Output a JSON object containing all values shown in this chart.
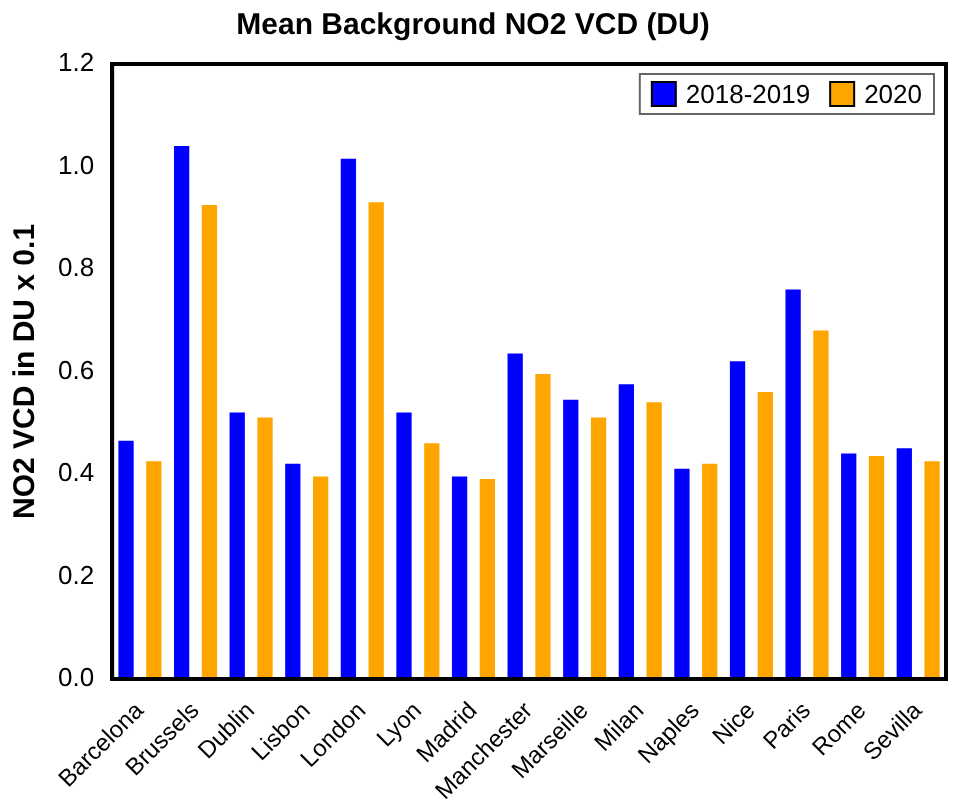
{
  "chart_data": {
    "type": "bar",
    "title": "Mean Background NO2 VCD (DU)",
    "ylabel": "NO2 VCD in DU x 0.1",
    "categories": [
      "Barcelona",
      "Brussels",
      "Dublin",
      "Lisbon",
      "London",
      "Lyon",
      "Madrid",
      "Manchester",
      "Marseille",
      "Milan",
      "Naples",
      "Nice",
      "Paris",
      "Rome",
      "Sevilla"
    ],
    "series": [
      {
        "name": "2018-2019",
        "color": "#0000ff",
        "values": [
          0.465,
          1.04,
          0.52,
          0.42,
          1.015,
          0.52,
          0.395,
          0.635,
          0.545,
          0.575,
          0.41,
          0.62,
          0.76,
          0.44,
          0.45
        ]
      },
      {
        "name": "2020",
        "color": "#ffa500",
        "values": [
          0.425,
          0.925,
          0.51,
          0.395,
          0.93,
          0.46,
          0.39,
          0.595,
          0.51,
          0.54,
          0.42,
          0.56,
          0.68,
          0.435,
          0.425
        ]
      }
    ],
    "ylim": [
      0,
      1.2
    ],
    "yticks": [
      {
        "value": 0,
        "label": "0.0"
      },
      {
        "value": 0.2,
        "label": "0.2"
      },
      {
        "value": 0.4,
        "label": "0.4"
      },
      {
        "value": 0.6,
        "label": "0.6"
      },
      {
        "value": 0.8,
        "label": "0.8"
      },
      {
        "value": 1,
        "label": "1.0"
      },
      {
        "value": 1.2,
        "label": "1.2"
      }
    ],
    "grid": false,
    "legend": "top right"
  }
}
